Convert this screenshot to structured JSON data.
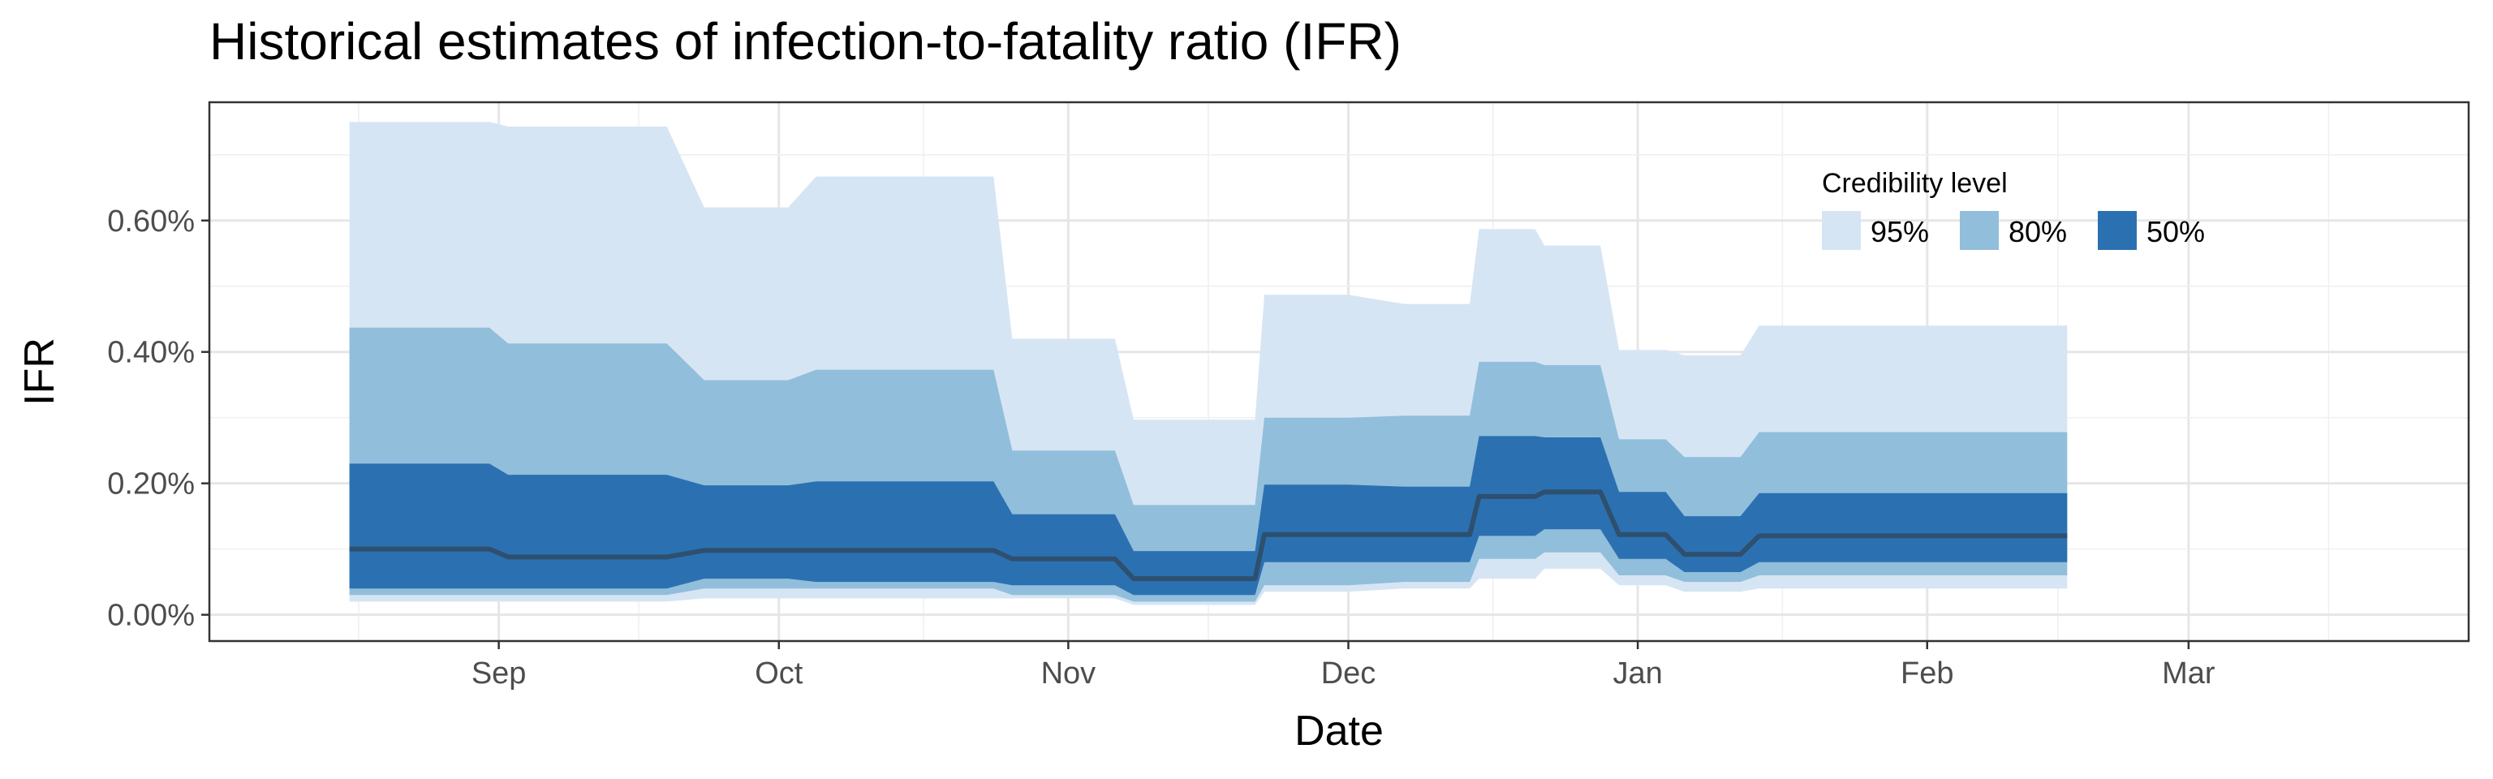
{
  "chart_data": {
    "type": "area",
    "title": "Historical estimates of infection-to-fatality ratio (IFR)",
    "xlabel": "Date",
    "ylabel": "IFR",
    "x_axis": {
      "type": "date",
      "range": [
        "2020-08-01",
        "2021-03-31"
      ],
      "ticks": [
        {
          "date": "2020-09-01",
          "label": "Sep"
        },
        {
          "date": "2020-10-01",
          "label": "Oct"
        },
        {
          "date": "2020-11-01",
          "label": "Nov"
        },
        {
          "date": "2020-12-01",
          "label": "Dec"
        },
        {
          "date": "2021-01-01",
          "label": "Jan"
        },
        {
          "date": "2021-02-01",
          "label": "Feb"
        },
        {
          "date": "2021-03-01",
          "label": "Mar"
        }
      ]
    },
    "y_axis": {
      "range": [
        -0.0004,
        0.0078
      ],
      "ticks": [
        {
          "value": 0.0,
          "label": "0.00%"
        },
        {
          "value": 0.002,
          "label": "0.20%"
        },
        {
          "value": 0.004,
          "label": "0.40%"
        },
        {
          "value": 0.006,
          "label": "0.60%"
        }
      ]
    },
    "grid": true,
    "legend": {
      "title": "Credibility level",
      "position": "top-right",
      "items": [
        {
          "label": "95%",
          "color": "#d6e5f4"
        },
        {
          "label": "80%",
          "color": "#91bedb"
        },
        {
          "label": "50%",
          "color": "#2b71b1"
        }
      ]
    },
    "colors": {
      "ci95": "#d6e5f4",
      "ci80": "#91bedb",
      "ci50": "#2b71b1",
      "median": "#2f4f6f"
    },
    "segments": [
      {
        "start": "2020-08-16",
        "end": "2020-08-31",
        "median": 0.001,
        "lo95": 0.0002,
        "hi95": 0.0075,
        "lo80": 0.0003,
        "hi80": 0.00437,
        "lo50": 0.0004,
        "hi50": 0.0023
      },
      {
        "start": "2020-09-02",
        "end": "2020-09-19",
        "median": 0.00088,
        "lo95": 0.0002,
        "hi95": 0.00743,
        "lo80": 0.0003,
        "hi80": 0.00413,
        "lo50": 0.0004,
        "hi50": 0.00213
      },
      {
        "start": "2020-09-23",
        "end": "2020-10-02",
        "median": 0.00098,
        "lo95": 0.00025,
        "hi95": 0.0062,
        "lo80": 0.0004,
        "hi80": 0.00357,
        "lo50": 0.00055,
        "hi50": 0.00197
      },
      {
        "start": "2020-10-05",
        "end": "2020-10-24",
        "median": 0.00098,
        "lo95": 0.00025,
        "hi95": 0.00667,
        "lo80": 0.0004,
        "hi80": 0.00373,
        "lo50": 0.0005,
        "hi50": 0.00203
      },
      {
        "start": "2020-10-26",
        "end": "2020-11-06",
        "median": 0.00085,
        "lo95": 0.00025,
        "hi95": 0.0042,
        "lo80": 0.0003,
        "hi80": 0.0025,
        "lo50": 0.00045,
        "hi50": 0.00153
      },
      {
        "start": "2020-11-08",
        "end": "2020-11-21",
        "median": 0.00055,
        "lo95": 0.00015,
        "hi95": 0.00297,
        "lo80": 0.0002,
        "hi80": 0.00167,
        "lo50": 0.0003,
        "hi50": 0.00097
      },
      {
        "start": "2020-11-22",
        "end": "2020-12-01",
        "median": 0.00122,
        "lo95": 0.00035,
        "hi95": 0.00487,
        "lo80": 0.00045,
        "hi80": 0.003,
        "lo50": 0.0008,
        "hi50": 0.00198
      },
      {
        "start": "2020-12-07",
        "end": "2020-12-14",
        "median": 0.00122,
        "lo95": 0.0004,
        "hi95": 0.00473,
        "lo80": 0.0005,
        "hi80": 0.00303,
        "lo50": 0.0008,
        "hi50": 0.00195
      },
      {
        "start": "2020-12-15",
        "end": "2020-12-21",
        "median": 0.0018,
        "lo95": 0.00055,
        "hi95": 0.00587,
        "lo80": 0.00085,
        "hi80": 0.00385,
        "lo50": 0.0012,
        "hi50": 0.00272
      },
      {
        "start": "2020-12-22",
        "end": "2020-12-28",
        "median": 0.00187,
        "lo95": 0.0007,
        "hi95": 0.00562,
        "lo80": 0.00095,
        "hi80": 0.0038,
        "lo50": 0.0013,
        "hi50": 0.0027
      },
      {
        "start": "2020-12-30",
        "end": "2021-01-04",
        "median": 0.00122,
        "lo95": 0.00045,
        "hi95": 0.00403,
        "lo80": 0.0006,
        "hi80": 0.00267,
        "lo50": 0.00085,
        "hi50": 0.00187
      },
      {
        "start": "2021-01-06",
        "end": "2021-01-12",
        "median": 0.00092,
        "lo95": 0.00035,
        "hi95": 0.00395,
        "lo80": 0.0005,
        "hi80": 0.0024,
        "lo50": 0.00065,
        "hi50": 0.0015
      },
      {
        "start": "2021-01-14",
        "end": "2021-02-16",
        "median": 0.0012,
        "lo95": 0.0004,
        "hi95": 0.0044,
        "lo80": 0.0006,
        "hi80": 0.00278,
        "lo50": 0.0008,
        "hi50": 0.00185
      }
    ]
  }
}
